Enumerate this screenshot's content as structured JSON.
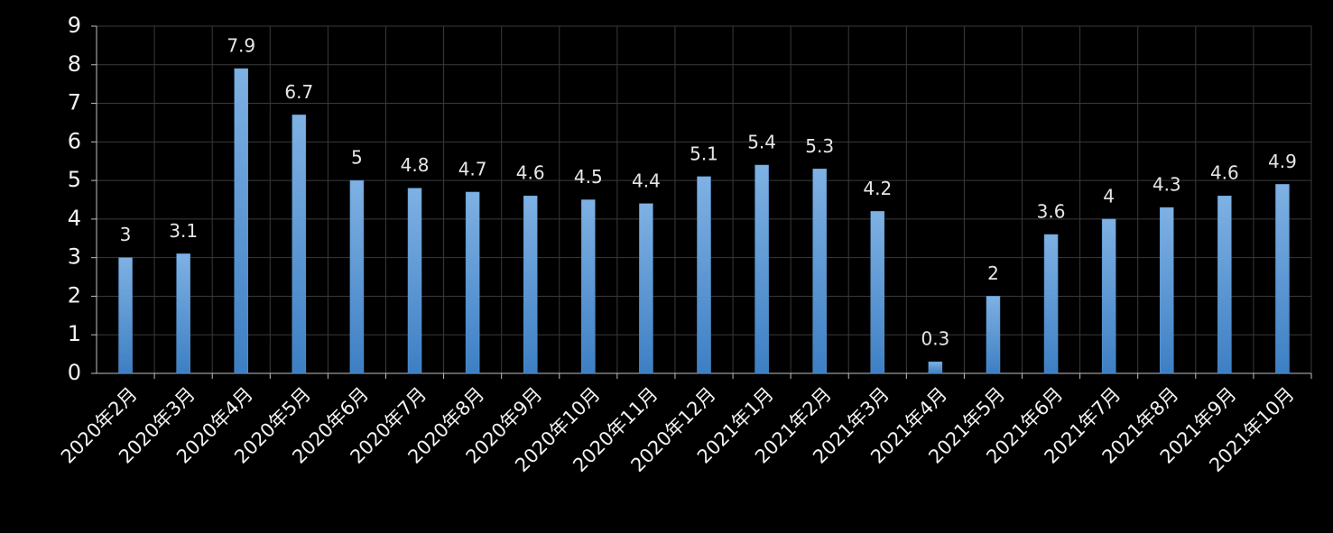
{
  "chart_data": {
    "type": "bar",
    "categories": [
      "2020年2月",
      "2020年3月",
      "2020年4月",
      "2020年5月",
      "2020年6月",
      "2020年7月",
      "2020年8月",
      "2020年9月",
      "2020年10月",
      "2020年11月",
      "2020年12月",
      "2021年1月",
      "2021年2月",
      "2021年3月",
      "2021年4月",
      "2021年5月",
      "2021年6月",
      "2021年7月",
      "2021年8月",
      "2021年9月",
      "2021年10月"
    ],
    "values": [
      3,
      3.1,
      7.9,
      6.7,
      5,
      4.8,
      4.7,
      4.6,
      4.5,
      4.4,
      5.1,
      5.4,
      5.3,
      4.2,
      0.3,
      2,
      3.6,
      4,
      4.3,
      4.6,
      4.9
    ],
    "color": "#5b9bd5",
    "ylim": [
      0,
      9
    ],
    "yticks": [
      0,
      1,
      2,
      3,
      4,
      5,
      6,
      7,
      8,
      9
    ],
    "grid": true
  }
}
